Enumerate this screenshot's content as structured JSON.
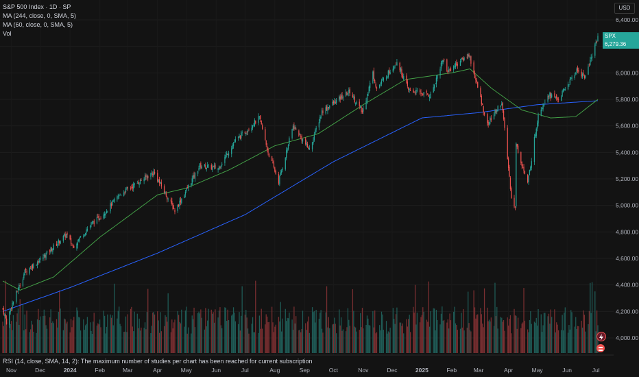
{
  "legend": {
    "title": "S&P 500 Index · 1D · SP",
    "ma1": "MA (244, close, 0, SMA, 5)",
    "ma2": "MA (60, close, 0, SMA, 5)",
    "vol": "Vol"
  },
  "currency_button": "USD",
  "rsi_message": "RSI (14, close, SMA, 14, 2): The maximum number of studies per chart has been reached for current subscription",
  "price_tag": {
    "symbol": "SPX",
    "value": "6,279.36",
    "color": "#26a69a"
  },
  "colors": {
    "up": "#26a69a",
    "down": "#ef5350",
    "ma244": "#2962ff",
    "ma60": "#43a047",
    "background": "#131313"
  },
  "icons": [
    "lightning-icon",
    "flag-icon"
  ],
  "chart_data": {
    "type": "candlestick",
    "title": "S&P 500 Index · 1D · SP",
    "y_ticks": [
      4000,
      4200,
      4400,
      4600,
      4800,
      5000,
      5200,
      5400,
      5600,
      5800,
      6000,
      6200,
      6400
    ],
    "y_tick_labels": [
      "4,000.00",
      "4,200.00",
      "4,400.00",
      "4,600.00",
      "4,800.00",
      "5,000.00",
      "5,200.00",
      "5,400.00",
      "5,600.00",
      "5,800.00",
      "6,000.00",
      "6,200.00",
      "6,400.00"
    ],
    "ylim": [
      3900,
      6500
    ],
    "x_ticks": [
      "Nov",
      "Dec",
      "2024",
      "Feb",
      "Mar",
      "Apr",
      "May",
      "Jun",
      "Jul",
      "Aug",
      "Sep",
      "Oct",
      "Nov",
      "Dec",
      "2025",
      "Feb",
      "Mar",
      "Apr",
      "May",
      "Jun",
      "Jul"
    ],
    "x_tick_dates": [
      "2023-11-01",
      "2023-12-01",
      "2024-01-01",
      "2024-02-01",
      "2024-03-01",
      "2024-04-01",
      "2024-05-01",
      "2024-06-01",
      "2024-07-01",
      "2024-08-01",
      "2024-09-01",
      "2024-10-01",
      "2024-11-01",
      "2024-12-01",
      "2025-01-01",
      "2025-02-01",
      "2025-03-01",
      "2025-04-01",
      "2025-05-01",
      "2025-06-01",
      "2025-07-01"
    ],
    "date_range": [
      "2023-10-23",
      "2025-07-03"
    ],
    "price_anchors": [
      [
        "2023-10-23",
        4220
      ],
      [
        "2023-10-27",
        4120
      ],
      [
        "2023-11-01",
        4240
      ],
      [
        "2023-11-15",
        4500
      ],
      [
        "2023-12-01",
        4590
      ],
      [
        "2023-12-28",
        4780
      ],
      [
        "2024-01-04",
        4690
      ],
      [
        "2024-01-23",
        4860
      ],
      [
        "2024-02-01",
        4910
      ],
      [
        "2024-02-23",
        5090
      ],
      [
        "2024-03-28",
        5250
      ],
      [
        "2024-04-19",
        4960
      ],
      [
        "2024-05-15",
        5300
      ],
      [
        "2024-06-03",
        5280
      ],
      [
        "2024-06-20",
        5480
      ],
      [
        "2024-07-16",
        5660
      ],
      [
        "2024-07-25",
        5400
      ],
      [
        "2024-08-05",
        5180
      ],
      [
        "2024-08-20",
        5600
      ],
      [
        "2024-09-06",
        5420
      ],
      [
        "2024-09-19",
        5710
      ],
      [
        "2024-10-18",
        5860
      ],
      [
        "2024-10-31",
        5700
      ],
      [
        "2024-11-11",
        6000
      ],
      [
        "2024-11-15",
        5880
      ],
      [
        "2024-12-06",
        6090
      ],
      [
        "2024-12-18",
        5870
      ],
      [
        "2025-01-10",
        5830
      ],
      [
        "2025-01-23",
        6110
      ],
      [
        "2025-01-27",
        6010
      ],
      [
        "2025-02-19",
        6140
      ],
      [
        "2025-03-10",
        5610
      ],
      [
        "2025-03-25",
        5780
      ],
      [
        "2025-04-04",
        5070
      ],
      [
        "2025-04-08",
        4980
      ],
      [
        "2025-04-09",
        5460
      ],
      [
        "2025-04-21",
        5160
      ],
      [
        "2025-05-02",
        5690
      ],
      [
        "2025-05-12",
        5840
      ],
      [
        "2025-05-23",
        5800
      ],
      [
        "2025-06-11",
        6020
      ],
      [
        "2025-06-20",
        5970
      ],
      [
        "2025-07-03",
        6279.36
      ]
    ],
    "series": [
      {
        "name": "MA (244, close, 0, SMA, 5)",
        "anchors": [
          [
            "2023-10-23",
            4200
          ],
          [
            "2024-01-01",
            4380
          ],
          [
            "2024-04-01",
            4640
          ],
          [
            "2024-07-01",
            4930
          ],
          [
            "2024-10-01",
            5330
          ],
          [
            "2025-01-01",
            5660
          ],
          [
            "2025-03-01",
            5700
          ],
          [
            "2025-05-01",
            5760
          ],
          [
            "2025-07-03",
            5790
          ]
        ]
      },
      {
        "name": "MA (60, close, 0, SMA, 5)",
        "anchors": [
          [
            "2023-10-23",
            4430
          ],
          [
            "2023-11-10",
            4360
          ],
          [
            "2023-12-15",
            4460
          ],
          [
            "2024-02-01",
            4760
          ],
          [
            "2024-04-01",
            5080
          ],
          [
            "2024-05-01",
            5130
          ],
          [
            "2024-06-15",
            5270
          ],
          [
            "2024-08-01",
            5450
          ],
          [
            "2024-09-15",
            5540
          ],
          [
            "2024-11-01",
            5760
          ],
          [
            "2024-12-15",
            5950
          ],
          [
            "2025-02-01",
            6000
          ],
          [
            "2025-02-20",
            6030
          ],
          [
            "2025-03-15",
            5880
          ],
          [
            "2025-04-15",
            5720
          ],
          [
            "2025-05-15",
            5660
          ],
          [
            "2025-06-10",
            5670
          ],
          [
            "2025-07-03",
            5800
          ]
        ]
      }
    ],
    "last_price": 6279.36
  }
}
